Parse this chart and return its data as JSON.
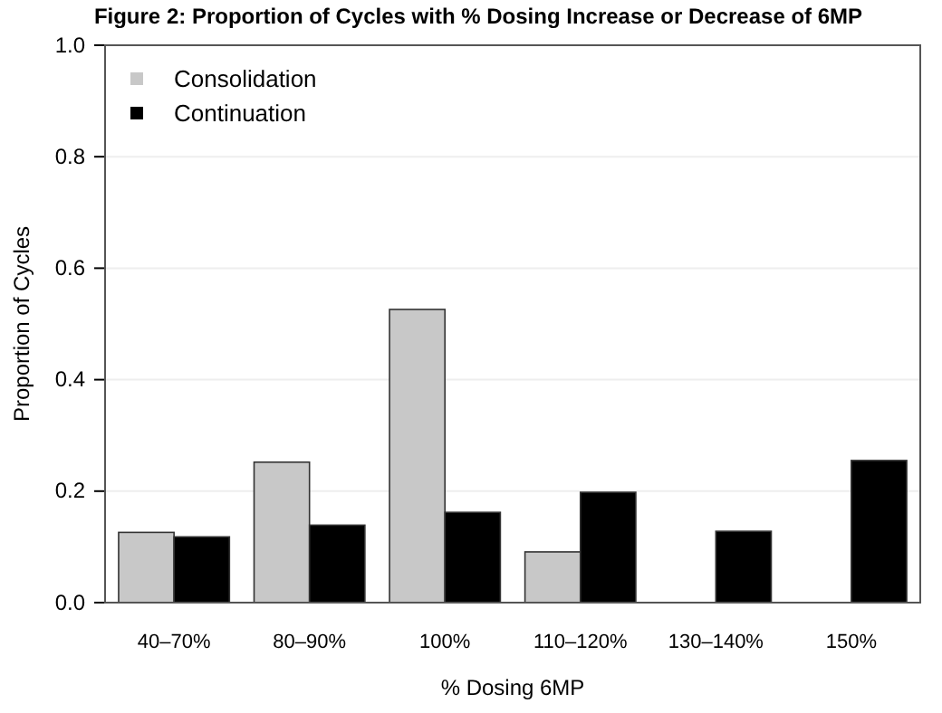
{
  "chart_data": {
    "type": "bar",
    "title": "Figure 2: Proportion of Cycles with % Dosing Increase or Decrease of 6MP",
    "xlabel": "% Dosing 6MP",
    "ylabel": "Proportion of Cycles",
    "categories": [
      "40–70%",
      "80–90%",
      "100%",
      "110–120%",
      "130–140%",
      "150%"
    ],
    "series": [
      {
        "name": "Consolidation",
        "color": "#c8c8c8",
        "values": [
          0.126,
          0.252,
          0.526,
          0.091,
          0,
          0
        ]
      },
      {
        "name": "Continuation",
        "color": "#000000",
        "values": [
          0.118,
          0.139,
          0.162,
          0.198,
          0.128,
          0.255
        ]
      }
    ],
    "ylim": [
      0,
      1
    ],
    "yticks": [
      {
        "value": 0,
        "label": "0.0"
      },
      {
        "value": 0.2,
        "label": "0.2"
      },
      {
        "value": 0.4,
        "label": "0.4"
      },
      {
        "value": 0.6,
        "label": "0.6"
      },
      {
        "value": 0.8,
        "label": "0.8"
      },
      {
        "value": 1,
        "label": "1.0"
      }
    ],
    "grid": "y",
    "legend": "top left"
  }
}
